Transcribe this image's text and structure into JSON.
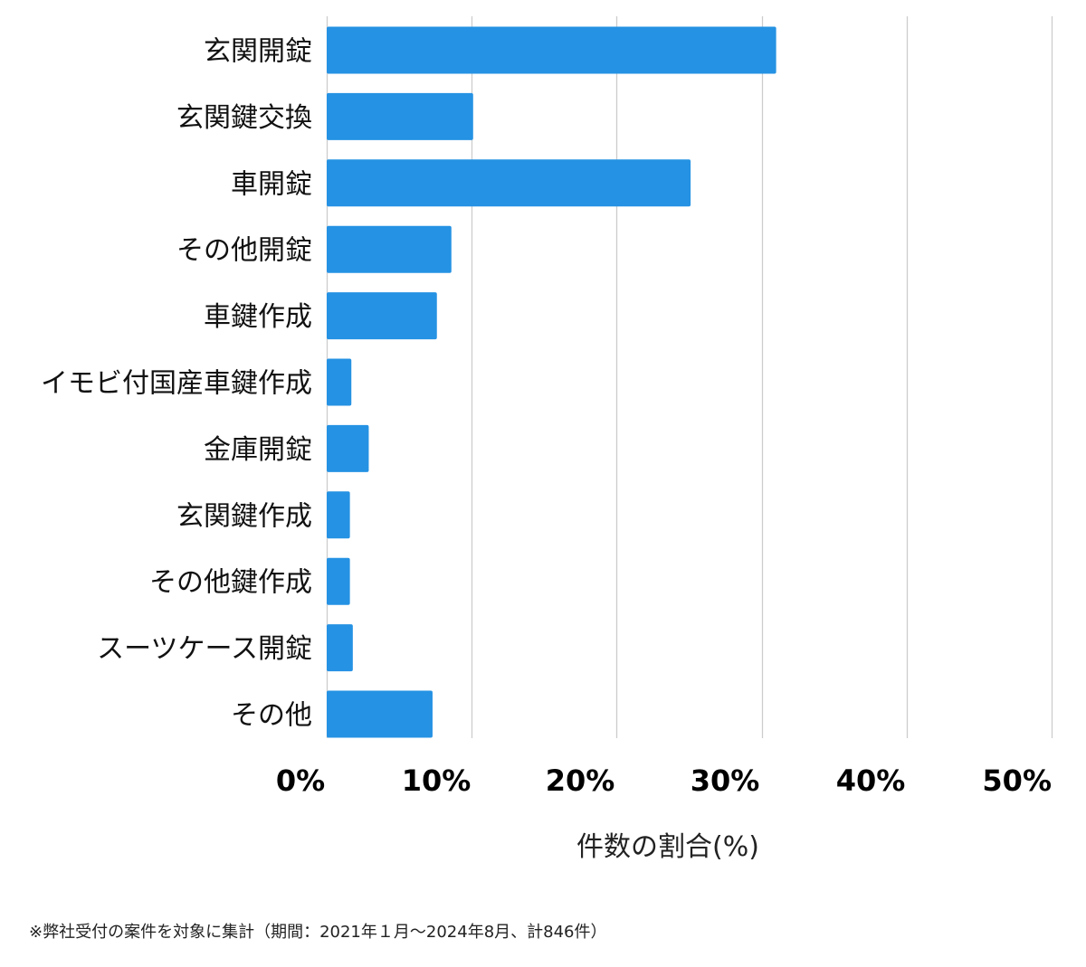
{
  "chart_data": {
    "type": "bar",
    "orientation": "horizontal",
    "categories": [
      "玄関開錠",
      "玄関鍵交換",
      "車開錠",
      "その他開錠",
      "車鍵作成",
      "イモビ付国産車鍵作成",
      "金庫開錠",
      "玄関鍵作成",
      "その他鍵作成",
      "スーツケース開錠",
      "その他"
    ],
    "values": [
      31.0,
      10.1,
      25.1,
      8.6,
      7.6,
      1.7,
      2.9,
      1.6,
      1.6,
      1.8,
      7.3
    ],
    "xlabel": "件数の割合(%)",
    "ylabel": "",
    "xlim": [
      0,
      50
    ],
    "x_ticks": [
      0,
      10,
      20,
      30,
      40,
      50
    ],
    "x_tick_labels": [
      "0%",
      "10%",
      "20%",
      "30%",
      "40%",
      "50%"
    ],
    "grid": "vertical",
    "legend": "none",
    "bar_color": "#2592e3",
    "grid_color": "#cccccc"
  },
  "footnote": "※弊社受付の案件を対象に集計（期間：2021年１月〜2024年8月、計846件）"
}
